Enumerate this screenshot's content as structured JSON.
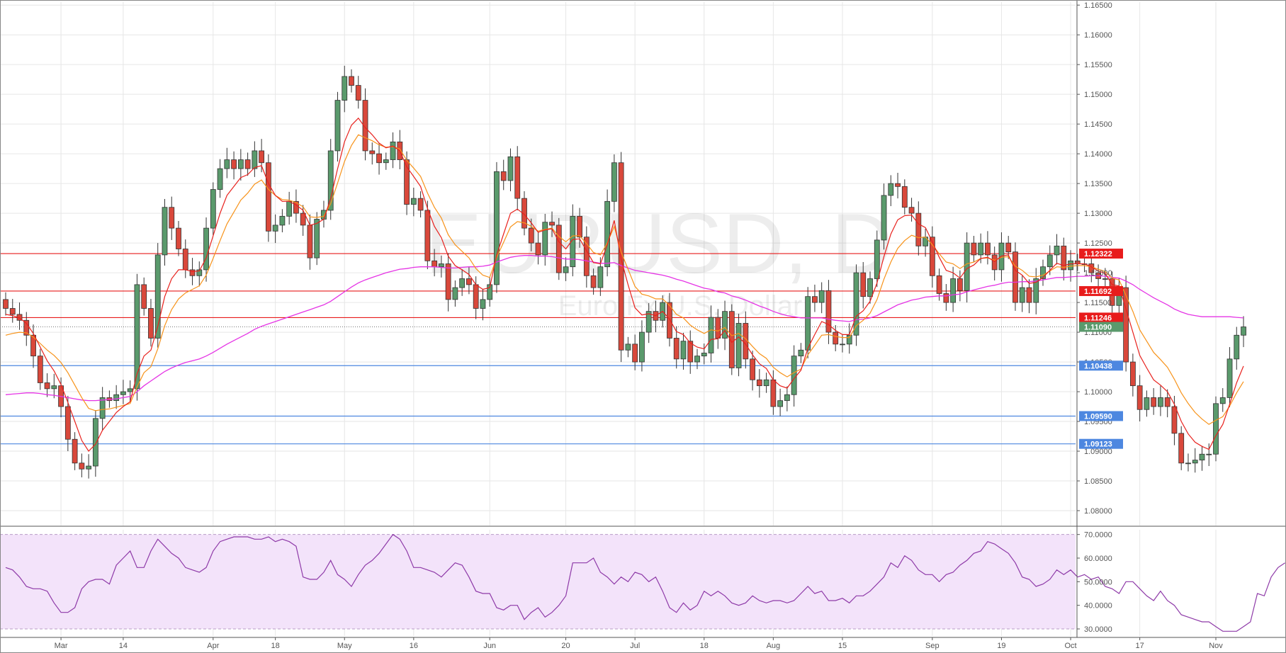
{
  "watermark": {
    "symbol": "EURUSD, D",
    "description": "Euro Fx/U.S. Dollar"
  },
  "colors": {
    "up": "#5a9a6c",
    "down": "#d9483b",
    "ema_fast": "#e8211d",
    "ema_mid": "#f7931a",
    "ma_slow": "#e534e5",
    "resistance": "#e81c1c",
    "support": "#4d87e0",
    "last_price": "#5a9a6c",
    "rsi_line": "#8e3aa8",
    "rsi_band": "#f3e3fa"
  },
  "price_axis": {
    "ylim": [
      1.0775,
      1.1655
    ],
    "ticks": [
      "1.16500",
      "1.16000",
      "1.15500",
      "1.15000",
      "1.14500",
      "1.14000",
      "1.13500",
      "1.13000",
      "1.12500",
      "1.12000",
      "1.11500",
      "1.11000",
      "1.10500",
      "1.10000",
      "1.09500",
      "1.09000",
      "1.08500",
      "1.08000"
    ]
  },
  "rsi_axis": {
    "ylim": [
      27,
      72
    ],
    "ticks": [
      "70.0000",
      "60.0000",
      "50.0000",
      "40.0000",
      "30.0000"
    ],
    "band": [
      30,
      70
    ]
  },
  "x_labels": [
    {
      "label": "Mar",
      "bar": 8
    },
    {
      "label": "14",
      "bar": 17
    },
    {
      "label": "Apr",
      "bar": 30
    },
    {
      "label": "18",
      "bar": 39
    },
    {
      "label": "May",
      "bar": 49
    },
    {
      "label": "16",
      "bar": 59
    },
    {
      "label": "Jun",
      "bar": 70
    },
    {
      "label": "20",
      "bar": 81
    },
    {
      "label": "Jul",
      "bar": 91
    },
    {
      "label": "18",
      "bar": 101
    },
    {
      "label": "Aug",
      "bar": 111
    },
    {
      "label": "15",
      "bar": 121
    },
    {
      "label": "Sep",
      "bar": 134
    },
    {
      "label": "19",
      "bar": 144
    },
    {
      "label": "Oct",
      "bar": 154
    },
    {
      "label": "17",
      "bar": 164
    },
    {
      "label": "Nov",
      "bar": 175
    }
  ],
  "levels": [
    {
      "value": 1.12322,
      "label": "1.12322",
      "kind": "resistance"
    },
    {
      "value": 1.11692,
      "label": "1.11692",
      "kind": "resistance"
    },
    {
      "value": 1.11246,
      "label": "1.11246",
      "kind": "resistance"
    },
    {
      "value": 1.10438,
      "label": "1.10438",
      "kind": "support"
    },
    {
      "value": 1.0959,
      "label": "1.09590",
      "kind": "support"
    },
    {
      "value": 1.09123,
      "label": "1.09123",
      "kind": "support"
    }
  ],
  "last_price": {
    "value": 1.1109,
    "label": "1.11090"
  },
  "chart_data": [
    {
      "type": "candlestick",
      "title": "EURUSD, D",
      "subtitle": "Euro Fx/U.S. Dollar",
      "ylim": [
        1.0775,
        1.1655
      ],
      "grid": true,
      "close": [
        1.114,
        1.113,
        1.112,
        1.1095,
        1.106,
        1.1015,
        1.1005,
        1.101,
        1.0975,
        1.092,
        1.088,
        1.087,
        1.0875,
        1.0955,
        1.099,
        1.0985,
        1.0995,
        1.1,
        1.1005,
        1.118,
        1.114,
        1.109,
        1.123,
        1.131,
        1.1275,
        1.124,
        1.1205,
        1.1195,
        1.1205,
        1.1275,
        1.134,
        1.1375,
        1.139,
        1.1375,
        1.139,
        1.1375,
        1.1405,
        1.1385,
        1.127,
        1.128,
        1.1295,
        1.132,
        1.13,
        1.128,
        1.1225,
        1.129,
        1.1305,
        1.1405,
        1.149,
        1.153,
        1.1515,
        1.149,
        1.1405,
        1.14,
        1.1385,
        1.139,
        1.142,
        1.139,
        1.1315,
        1.1325,
        1.1305,
        1.122,
        1.121,
        1.1215,
        1.1155,
        1.1175,
        1.119,
        1.118,
        1.114,
        1.1155,
        1.118,
        1.137,
        1.1355,
        1.1395,
        1.1325,
        1.1275,
        1.125,
        1.123,
        1.1285,
        1.128,
        1.12,
        1.121,
        1.1295,
        1.126,
        1.1195,
        1.1175,
        1.121,
        1.132,
        1.1385,
        1.107,
        1.108,
        1.105,
        1.11,
        1.1135,
        1.112,
        1.115,
        1.109,
        1.1055,
        1.1085,
        1.105,
        1.106,
        1.1065,
        1.1125,
        1.109,
        1.1135,
        1.104,
        1.1115,
        1.1055,
        1.102,
        1.101,
        1.102,
        1.0975,
        1.0985,
        1.0995,
        1.106,
        1.107,
        1.116,
        1.115,
        1.117,
        1.11,
        1.108,
        1.108,
        1.1095,
        1.12,
        1.116,
        1.119,
        1.1255,
        1.133,
        1.135,
        1.1345,
        1.131,
        1.13,
        1.1245,
        1.126,
        1.1195,
        1.1165,
        1.115,
        1.119,
        1.117,
        1.125,
        1.123,
        1.125,
        1.123,
        1.1205,
        1.125,
        1.1235,
        1.115,
        1.1175,
        1.115,
        1.119,
        1.121,
        1.123,
        1.1245,
        1.1205,
        1.122,
        1.1215,
        1.1215,
        1.12,
        1.119,
        1.119,
        1.1145,
        1.1175,
        1.105,
        1.101,
        1.097,
        1.099,
        1.0975,
        1.099,
        1.0975,
        1.093,
        1.088,
        1.088,
        1.0885,
        1.0895,
        1.0895,
        1.098,
        1.099,
        1.1055,
        1.1095,
        1.1109
      ],
      "ema_fast": [
        1.113,
        1.1128,
        1.1124,
        1.1115,
        1.1098,
        1.1075,
        1.1052,
        1.1035,
        1.1012,
        1.0982,
        1.095,
        1.0918,
        1.09,
        1.0912,
        1.0935,
        1.095,
        1.0965,
        1.0975,
        1.0983,
        1.103,
        1.106,
        1.107,
        1.111,
        1.116,
        1.119,
        1.1205,
        1.1205,
        1.1202,
        1.1203,
        1.1225,
        1.1262,
        1.13,
        1.133,
        1.1345,
        1.136,
        1.1365,
        1.1377,
        1.138,
        1.135,
        1.133,
        1.132,
        1.132,
        1.1314,
        1.1305,
        1.128,
        1.1283,
        1.129,
        1.1325,
        1.1375,
        1.142,
        1.1448,
        1.146,
        1.1444,
        1.1432,
        1.1418,
        1.141,
        1.1413,
        1.1405,
        1.1378,
        1.1362,
        1.1345,
        1.1308,
        1.1278,
        1.1259,
        1.1228,
        1.1212,
        1.1205,
        1.1197,
        1.118,
        1.1172,
        1.1175,
        1.123,
        1.1265,
        1.13,
        1.1307,
        1.1298,
        1.1284,
        1.1268,
        1.1272,
        1.1274,
        1.1252,
        1.124,
        1.1256,
        1.1257,
        1.1237,
        1.1217,
        1.1215,
        1.1247,
        1.1288,
        1.1223,
        1.118,
        1.1141,
        1.1129,
        1.1131,
        1.1128,
        1.1135,
        1.1122,
        1.1101,
        1.1096,
        1.1082,
        1.1075,
        1.1072,
        1.1088,
        1.1089,
        1.1103,
        1.1083,
        1.1092,
        1.108,
        1.1062,
        1.1047,
        1.1039,
        1.102,
        1.101,
        1.1006,
        1.1022,
        1.1036,
        1.1073,
        1.1096,
        1.1118,
        1.1113,
        1.1103,
        1.1096,
        1.1096,
        1.1127,
        1.1136,
        1.1152,
        1.1183,
        1.1227,
        1.1265,
        1.1289,
        1.1296,
        1.1297,
        1.1282,
        1.1276,
        1.1252,
        1.1226,
        1.1204,
        1.12,
        1.1191,
        1.1207,
        1.1213,
        1.1224,
        1.1226,
        1.1219,
        1.1228,
        1.123,
        1.1204,
        1.1196,
        1.1182,
        1.1184,
        1.1192,
        1.1204,
        1.1216,
        1.1212,
        1.1215,
        1.1215,
        1.1215,
        1.121,
        1.1203,
        1.1199,
        1.118,
        1.1178,
        1.1139,
        1.11,
        1.1061,
        1.104,
        1.102,
        1.1011,
        1.1,
        1.0979,
        1.095,
        1.0929,
        1.0915,
        1.0908,
        1.0903,
        1.0926,
        1.0945,
        1.0979,
        1.1015,
        1.1043
      ],
      "ema_mid": [
        1.1095,
        1.1098,
        1.11,
        1.1099,
        1.1092,
        1.1081,
        1.107,
        1.1061,
        1.1049,
        1.1032,
        1.1011,
        1.099,
        1.0972,
        1.0968,
        1.097,
        1.0971,
        1.0974,
        1.0977,
        1.098,
        1.1008,
        1.1032,
        1.1042,
        1.1072,
        1.1111,
        1.1138,
        1.1156,
        1.1166,
        1.1172,
        1.1178,
        1.1196,
        1.1224,
        1.1254,
        1.1282,
        1.1302,
        1.1322,
        1.1334,
        1.1349,
        1.1356,
        1.134,
        1.133,
        1.1323,
        1.1322,
        1.1318,
        1.1311,
        1.1294,
        1.1293,
        1.1295,
        1.1316,
        1.1351,
        1.1387,
        1.1414,
        1.1432,
        1.1427,
        1.1422,
        1.1415,
        1.1411,
        1.1412,
        1.1408,
        1.1389,
        1.1376,
        1.1362,
        1.1334,
        1.131,
        1.1292,
        1.1264,
        1.1247,
        1.1236,
        1.1225,
        1.1207,
        1.1196,
        1.1192,
        1.1226,
        1.1251,
        1.1277,
        1.1286,
        1.1284,
        1.1278,
        1.127,
        1.1273,
        1.1275,
        1.1261,
        1.1252,
        1.1262,
        1.1262,
        1.1249,
        1.1234,
        1.123,
        1.125,
        1.1278,
        1.1235,
        1.1206,
        1.1177,
        1.1164,
        1.1161,
        1.1156,
        1.1156,
        1.1145,
        1.113,
        1.1124,
        1.1112,
        1.1104,
        1.1098,
        1.1104,
        1.1102,
        1.1108,
        1.1094,
        1.1098,
        1.1089,
        1.1076,
        1.1064,
        1.1056,
        1.1041,
        1.1032,
        1.1025,
        1.1032,
        1.1038,
        1.1062,
        1.1078,
        1.1095,
        1.1096,
        1.1093,
        1.1091,
        1.1091,
        1.1111,
        1.112,
        1.1132,
        1.1155,
        1.1189,
        1.1218,
        1.1241,
        1.1254,
        1.1263,
        1.1259,
        1.126,
        1.1247,
        1.1232,
        1.1218,
        1.1215,
        1.1207,
        1.1215,
        1.1218,
        1.1224,
        1.1225,
        1.1221,
        1.1226,
        1.1227,
        1.1211,
        1.1204,
        1.1194,
        1.1193,
        1.1196,
        1.1203,
        1.121,
        1.1209,
        1.1211,
        1.1212,
        1.1212,
        1.121,
        1.1206,
        1.1202,
        1.1191,
        1.1188,
        1.1162,
        1.1135,
        1.1104,
        1.1085,
        1.1066,
        1.1054,
        1.1041,
        1.1021,
        1.0998,
        1.098,
        1.0965,
        1.0954,
        1.0945,
        1.0952,
        1.0958,
        1.0976,
        1.0998,
        1.1017
      ],
      "ma_slow": [
        1.0995,
        1.0996,
        1.0997,
        1.0998,
        1.0998,
        1.0997,
        1.0995,
        1.0994,
        1.0992,
        1.099,
        1.0988,
        1.0986,
        1.0985,
        1.0985,
        1.0986,
        1.0987,
        1.0988,
        1.099,
        1.0992,
        1.1,
        1.101,
        1.1018,
        1.1026,
        1.1034,
        1.104,
        1.1045,
        1.1049,
        1.1052,
        1.1055,
        1.106,
        1.1066,
        1.1073,
        1.108,
        1.1086,
        1.1092,
        1.1098,
        1.1105,
        1.111,
        1.1114,
        1.1118,
        1.1122,
        1.1126,
        1.113,
        1.1134,
        1.1138,
        1.1142,
        1.1146,
        1.1152,
        1.116,
        1.1168,
        1.1176,
        1.1183,
        1.1188,
        1.1192,
        1.1196,
        1.12,
        1.1203,
        1.1206,
        1.1207,
        1.1209,
        1.121,
        1.121,
        1.121,
        1.1209,
        1.1208,
        1.1208,
        1.1209,
        1.121,
        1.121,
        1.1211,
        1.1213,
        1.1218,
        1.1222,
        1.1226,
        1.1228,
        1.1229,
        1.1229,
        1.1228,
        1.1228,
        1.1227,
        1.1225,
        1.1223,
        1.1223,
        1.1222,
        1.122,
        1.1218,
        1.1216,
        1.1216,
        1.1217,
        1.1212,
        1.1208,
        1.1204,
        1.1202,
        1.12,
        1.1198,
        1.1196,
        1.1193,
        1.1189,
        1.1186,
        1.1182,
        1.1178,
        1.1174,
        1.1172,
        1.1168,
        1.1166,
        1.1161,
        1.1158,
        1.1154,
        1.1149,
        1.1144,
        1.114,
        1.1135,
        1.1131,
        1.1128,
        1.1126,
        1.1124,
        1.1124,
        1.1124,
        1.1124,
        1.1122,
        1.112,
        1.1119,
        1.1118,
        1.1121,
        1.1122,
        1.1124,
        1.1128,
        1.1134,
        1.114,
        1.1146,
        1.115,
        1.1154,
        1.1156,
        1.1159,
        1.116,
        1.1161,
        1.1161,
        1.1163,
        1.1164,
        1.1168,
        1.1171,
        1.1174,
        1.1177,
        1.1179,
        1.1182,
        1.1184,
        1.1184,
        1.1185,
        1.1185,
        1.1186,
        1.1188,
        1.119,
        1.1192,
        1.1192,
        1.1193,
        1.1194,
        1.1194,
        1.1195,
        1.1195,
        1.1194,
        1.1192,
        1.1191,
        1.1186,
        1.118,
        1.1172,
        1.1165,
        1.1158,
        1.1152,
        1.1146,
        1.1139,
        1.1134,
        1.113,
        1.1128,
        1.1126,
        1.1126,
        1.1126,
        1.1126,
        1.1126,
        1.1125,
        1.1124
      ],
      "rsi": [
        56,
        55,
        52,
        48,
        47,
        47,
        46,
        41,
        37,
        37,
        39,
        47,
        50,
        51,
        51,
        49,
        57,
        60,
        63,
        56,
        56,
        63,
        68,
        65,
        62,
        60,
        56,
        55,
        54,
        56,
        63,
        67,
        68,
        69,
        69,
        69,
        68,
        68,
        69,
        67,
        68,
        67,
        65,
        52,
        51,
        51,
        54,
        59,
        53,
        51,
        48,
        53,
        57,
        59,
        62,
        66,
        70,
        68,
        63,
        56,
        56,
        55,
        54,
        52,
        55,
        58,
        57,
        52,
        46,
        45,
        45,
        39,
        38,
        40,
        40,
        34,
        37,
        39,
        35,
        37,
        40,
        44,
        58,
        58,
        58,
        60,
        54,
        52,
        49,
        52,
        50,
        54,
        53,
        50,
        52,
        46,
        39,
        37,
        41,
        38,
        40,
        46,
        44,
        46,
        44,
        41,
        40,
        41,
        44,
        42,
        41,
        42,
        42,
        41,
        42,
        45,
        48,
        45,
        46,
        42,
        42,
        43,
        41,
        44,
        44,
        46,
        49,
        52,
        58,
        56,
        61,
        59,
        55,
        53,
        53,
        50,
        53,
        54,
        57,
        59,
        62,
        63,
        67,
        66,
        64,
        62,
        58,
        52,
        51,
        48,
        49,
        51,
        55,
        53,
        55,
        52,
        53,
        51,
        52,
        48,
        47,
        45,
        50,
        50,
        47,
        44,
        42,
        46,
        42,
        40,
        36,
        35,
        34,
        33,
        33,
        31,
        29,
        29,
        29,
        31,
        33,
        45,
        44,
        52,
        56,
        58
      ],
      "levels": [
        1.12322,
        1.11692,
        1.11246,
        1.10438,
        1.0959,
        1.09123
      ],
      "last": 1.1109
    },
    {
      "type": "line",
      "title": "",
      "ylim": [
        27,
        72
      ],
      "yticks": [
        70,
        60,
        50,
        40,
        30
      ],
      "band": [
        30,
        70
      ],
      "grid": true
    }
  ]
}
